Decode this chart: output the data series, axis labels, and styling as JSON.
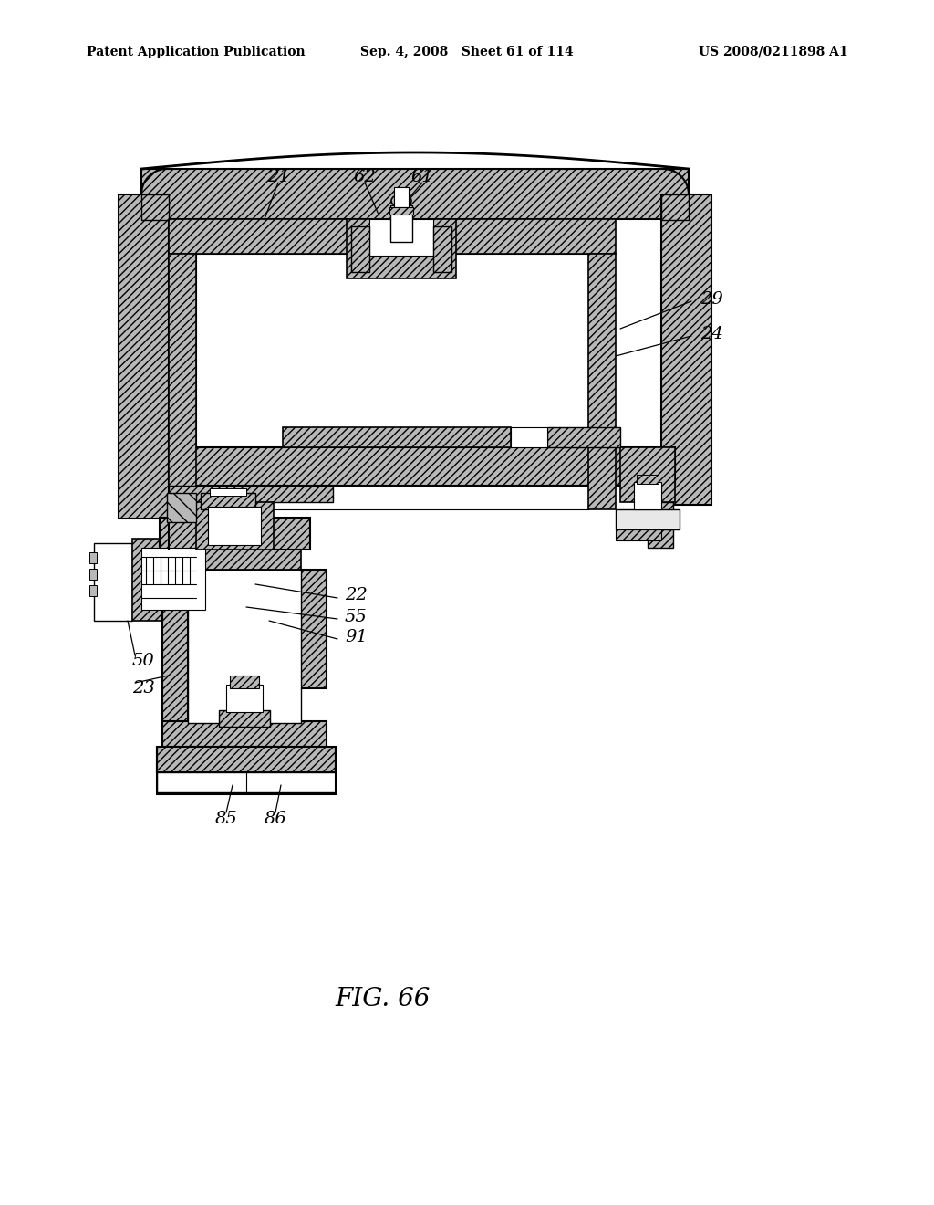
{
  "background_color": "#ffffff",
  "header_left": "Patent Application Publication",
  "header_center": "Sep. 4, 2008   Sheet 61 of 114",
  "header_right": "US 2008/0211898 A1",
  "figure_label": "FIG. 66",
  "label_fontsize": 14,
  "header_fontsize": 10,
  "fig_label_fontsize": 20
}
